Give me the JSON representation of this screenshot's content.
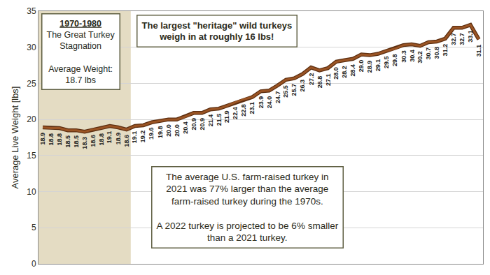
{
  "chart_data": {
    "type": "line",
    "y_label": "Average Live Weight [lbs]",
    "categories": [
      null,
      null,
      null,
      null,
      null,
      null,
      null,
      null,
      null,
      null,
      null,
      null,
      null,
      null,
      null,
      null,
      null,
      null,
      null,
      null,
      null,
      null,
      null,
      null,
      null,
      null,
      null,
      null,
      null,
      null,
      null,
      null,
      null,
      null,
      null,
      null,
      null,
      null,
      null,
      null,
      null,
      null,
      null,
      null,
      null,
      null,
      null,
      null,
      null,
      null,
      null,
      null,
      null
    ],
    "values": [
      18.9,
      18.8,
      18.8,
      18.5,
      18.5,
      18.3,
      18.6,
      18.8,
      19.1,
      18.9,
      18.6,
      19.1,
      19.2,
      19.6,
      19.8,
      20.0,
      20.0,
      20.4,
      20.9,
      20.9,
      21.4,
      21.5,
      21.9,
      22.4,
      22.8,
      23.1,
      23.9,
      24.0,
      24.7,
      25.5,
      25.7,
      26.3,
      27.2,
      26.8,
      27.1,
      28.0,
      28.2,
      28.4,
      29.0,
      28.9,
      29.1,
      29.5,
      29.8,
      30.3,
      30.4,
      30.2,
      30.7,
      30.8,
      31.2,
      32.7,
      32.7,
      33.1,
      31.1
    ],
    "value_labels": [
      "18.9",
      "18.8",
      "18.8",
      "18.5",
      "18.5",
      "18.3",
      "18.6",
      "18.8",
      "19.1",
      "18.9",
      "18.6",
      "19.1",
      "19.2",
      "19.6",
      "19.8",
      "20.0",
      "20.0",
      "20.4",
      "20.9",
      "20.9",
      "21.4",
      "21.5",
      "21.9",
      "22.4",
      "22.8",
      "23.1",
      "23.9",
      "24.0",
      "24.7",
      "25.5",
      "25.7",
      "26.3",
      "27.2",
      "26.8",
      "27.1",
      "28.0",
      "28.2",
      "28.4",
      "29.0",
      "28.9",
      "29.1",
      "29.5",
      "29.8",
      "30.3",
      "30.4",
      "30.2",
      "30.7",
      "30.8",
      "31.2",
      "32.7",
      "32.7",
      "33.1",
      "31.1"
    ],
    "color": "#9a5424",
    "ylim": [
      0,
      35
    ],
    "yticks": [
      0,
      5,
      10,
      15,
      20,
      25,
      30,
      35
    ],
    "grid": true,
    "data_labels": true,
    "tick_labels": "y",
    "annotations": [
      {
        "text": [
          [
            "1970-1980",
            "The Great Turkey",
            "Stagnation"
          ],
          [
            "Average Weight:",
            "18.7 lbs"
          ]
        ]
      },
      {
        "text": [
          [
            "The largest \"heritage\" wild turkeys",
            "weigh in at roughly 16 lbs!"
          ]
        ]
      },
      {
        "text": [
          [
            "The average U.S. farm-raised turkey in",
            "2021 was 77% larger than the average",
            "farm-raised turkey during the 1970s."
          ],
          [
            "A 2022 turkey is projected to be 6% smaller",
            "than a 2021 turkey."
          ]
        ]
      }
    ]
  }
}
